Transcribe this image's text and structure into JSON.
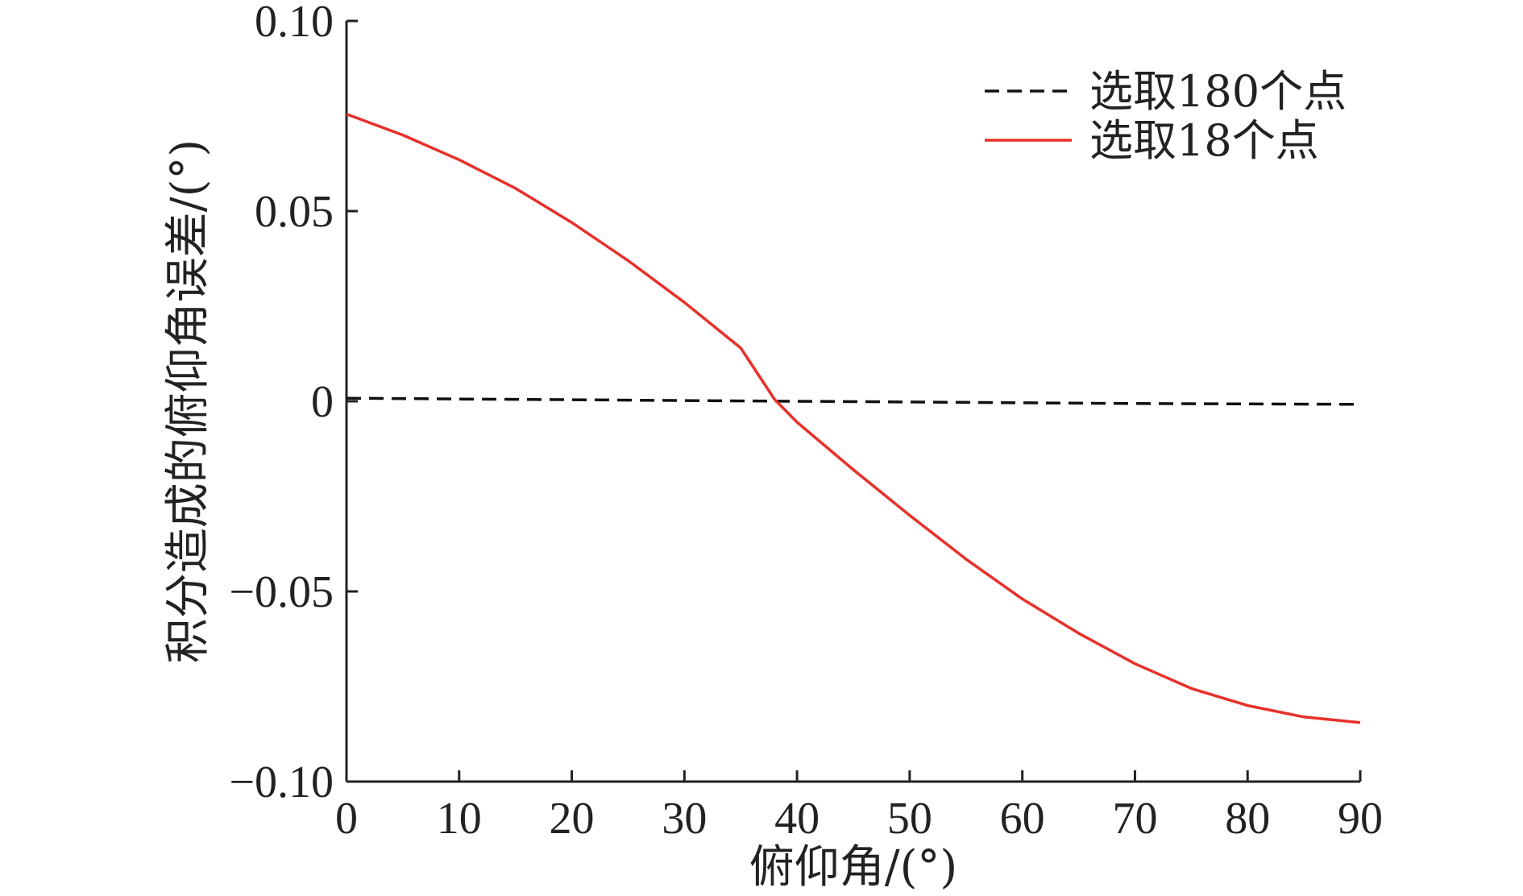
{
  "chart_data": {
    "type": "line",
    "xlabel": "俯仰角/(°)",
    "ylabel": "积分造成的俯仰角误差/(°)",
    "xlim": [
      0,
      90
    ],
    "ylim": [
      -0.1,
      0.1
    ],
    "x_ticks": [
      "0",
      "10",
      "20",
      "30",
      "40",
      "50",
      "60",
      "70",
      "80",
      "90"
    ],
    "y_ticks": [
      "−0.10",
      "−0.05",
      "0",
      "0.05",
      "0.10"
    ],
    "x_tick_values": [
      0,
      10,
      20,
      30,
      40,
      50,
      60,
      70,
      80,
      90
    ],
    "y_tick_values": [
      -0.1,
      -0.05,
      0,
      0.05,
      0.1
    ],
    "legend_position": "top-right",
    "grid": false,
    "series": [
      {
        "name": "选取180个点",
        "color": "#111111",
        "style": "dashed",
        "x": [
          0,
          10,
          20,
          30,
          40,
          50,
          60,
          70,
          80,
          90
        ],
        "y": [
          0.0008,
          0.0006,
          0.0004,
          0.0002,
          0.0,
          -0.0002,
          -0.0004,
          -0.0006,
          -0.0007,
          -0.0008
        ]
      },
      {
        "name": "选取18个点",
        "color": "#e8302a",
        "style": "solid",
        "x": [
          0,
          5,
          10,
          15,
          20,
          25,
          30,
          35,
          38,
          40,
          45,
          50,
          55,
          60,
          65,
          70,
          75,
          80,
          85,
          90
        ],
        "y": [
          0.0755,
          0.07,
          0.0635,
          0.056,
          0.047,
          0.037,
          0.026,
          0.014,
          0.0005,
          -0.0055,
          -0.018,
          -0.03,
          -0.0415,
          -0.052,
          -0.061,
          -0.069,
          -0.0755,
          -0.08,
          -0.083,
          -0.0845
        ]
      }
    ]
  }
}
